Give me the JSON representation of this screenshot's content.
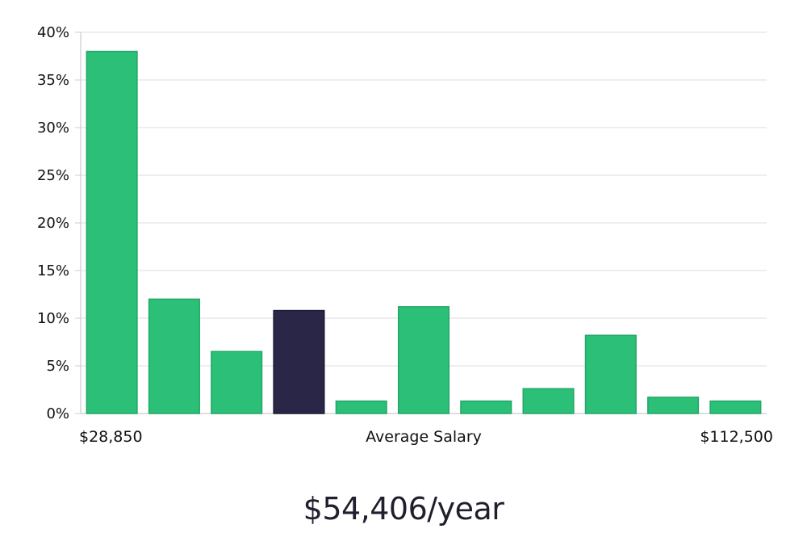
{
  "chart_data": {
    "type": "bar",
    "categories": [
      "1",
      "2",
      "3",
      "4",
      "5",
      "6",
      "7",
      "8",
      "9",
      "10",
      "11"
    ],
    "values": [
      38,
      12,
      6.5,
      10.8,
      1.3,
      11.2,
      1.3,
      2.6,
      8.2,
      1.7,
      1.3
    ],
    "highlight_index": 3,
    "ylim": [
      0,
      40
    ],
    "yticks": [
      "0%",
      "5%",
      "10%",
      "15%",
      "20%",
      "25%",
      "30%",
      "35%",
      "40%"
    ],
    "ytick_values": [
      0,
      5,
      10,
      15,
      20,
      25,
      30,
      35,
      40
    ],
    "x_left_label": "$28,850",
    "x_center_label": "Average Salary",
    "x_right_label": "$112,500",
    "grid": true,
    "colors": {
      "bar": "#2bbf78",
      "bar_border": "#22a866",
      "highlight": "#2a2647",
      "grid": "#e3e3e3",
      "axis": "#cccccc",
      "text": "#111111"
    }
  },
  "summary": {
    "salary_text": "$54,406/year"
  }
}
